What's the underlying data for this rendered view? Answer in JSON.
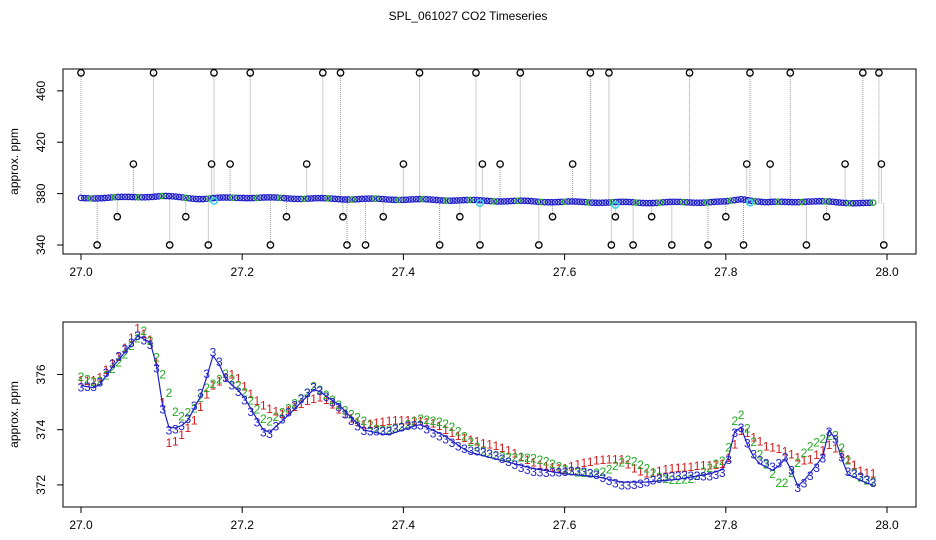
{
  "title": "SPL_061027  CO2 Timeseries",
  "colors": {
    "black": "#000000",
    "blue": "#1f1fc8",
    "cyan": "#3fd6e0",
    "green": "#22aa22",
    "red": "#d01818",
    "gray": "#9a9a9a"
  },
  "chart_data": [
    {
      "type": "scatter",
      "title": "SPL_061027  CO2 Timeseries",
      "xlabel": "",
      "ylabel": "approx. ppm",
      "xlim": [
        27.0,
        28.0
      ],
      "ylim": [
        333,
        477
      ],
      "xticks": [
        27.0,
        27.2,
        27.4,
        27.6,
        27.8,
        28.0
      ],
      "xtick_labels": [
        "27.0",
        "27.2",
        "27.4",
        "27.6",
        "27.8",
        "28.0"
      ],
      "yticks": [
        340,
        380,
        420,
        460
      ],
      "ytick_labels": [
        "340",
        "380",
        "420",
        "460"
      ],
      "baseline_series": {
        "name": "filtered",
        "x": [
          27.0,
          27.05,
          27.1,
          27.15,
          27.2,
          27.3,
          27.4,
          27.5,
          27.6,
          27.7,
          27.8,
          27.82,
          27.85,
          27.9,
          27.98
        ],
        "y": [
          376.5,
          377,
          378,
          376,
          377,
          376,
          375.5,
          374.5,
          373.5,
          373,
          373.5,
          376,
          373,
          374,
          372.5
        ]
      },
      "outliers": {
        "x": [
          27.0,
          27.02,
          27.045,
          27.065,
          27.09,
          27.11,
          27.13,
          27.158,
          27.162,
          27.165,
          27.185,
          27.21,
          27.235,
          27.255,
          27.28,
          27.3,
          27.322,
          27.325,
          27.33,
          27.353,
          27.375,
          27.4,
          27.42,
          27.445,
          27.47,
          27.49,
          27.495,
          27.498,
          27.52,
          27.545,
          27.568,
          27.585,
          27.61,
          27.632,
          27.655,
          27.658,
          27.663,
          27.685,
          27.708,
          27.733,
          27.755,
          27.778,
          27.8,
          27.822,
          27.826,
          27.83,
          27.855,
          27.88,
          27.9,
          27.925,
          27.948,
          27.97,
          27.99,
          27.993,
          27.996
        ],
        "y": [
          474,
          340,
          362,
          403,
          474,
          340,
          362,
          340,
          403,
          474,
          403,
          474,
          340,
          362,
          403,
          474,
          474,
          362,
          340,
          340,
          362,
          403,
          474,
          340,
          362,
          474,
          340,
          403,
          403,
          474,
          340,
          362,
          403,
          474,
          474,
          340,
          362,
          340,
          362,
          340,
          474,
          340,
          362,
          340,
          403,
          474,
          403,
          474,
          340,
          362,
          403,
          474,
          474,
          403,
          340
        ]
      }
    },
    {
      "type": "scatter",
      "xlabel": "",
      "ylabel": "approx. ppm",
      "xlim": [
        27.0,
        28.0
      ],
      "ylim": [
        371.2,
        377.9
      ],
      "xticks": [
        27.0,
        27.2,
        27.4,
        27.6,
        27.8,
        28.0
      ],
      "xtick_labels": [
        "27.0",
        "27.2",
        "27.4",
        "27.6",
        "27.8",
        "28.0"
      ],
      "yticks": [
        372,
        374,
        376
      ],
      "ytick_labels": [
        "372",
        "374",
        "376"
      ],
      "series": [
        {
          "name": "3",
          "label": "3",
          "color": "#1f1fc8",
          "x": [
            27.0,
            27.02,
            27.04,
            27.06,
            27.07,
            27.09,
            27.1,
            27.11,
            27.13,
            27.15,
            27.165,
            27.18,
            27.2,
            27.23,
            27.26,
            27.29,
            27.32,
            27.35,
            27.38,
            27.42,
            27.45,
            27.48,
            27.52,
            27.56,
            27.6,
            27.64,
            27.67,
            27.7,
            27.74,
            27.78,
            27.8,
            27.815,
            27.83,
            27.84,
            27.86,
            27.875,
            27.89,
            27.92,
            27.93,
            27.95,
            27.98
          ],
          "y": [
            375.6,
            375.5,
            376.3,
            377.0,
            377.4,
            377.1,
            375.0,
            374.0,
            374.2,
            375.3,
            376.8,
            375.8,
            375.3,
            373.8,
            374.6,
            375.5,
            374.9,
            374.0,
            373.8,
            374.2,
            373.8,
            373.2,
            372.9,
            372.6,
            372.4,
            372.3,
            372.1,
            372.1,
            372.2,
            372.4,
            372.6,
            374.4,
            373.2,
            372.8,
            372.5,
            373.0,
            371.9,
            373.0,
            374.2,
            372.4,
            372.0
          ]
        },
        {
          "name": "2",
          "label": "2",
          "color": "#22aa22",
          "x": [
            27.0,
            27.02,
            27.045,
            27.065,
            27.08,
            27.1,
            27.12,
            27.14,
            27.155,
            27.18,
            27.2,
            27.23,
            27.26,
            27.29,
            27.33,
            27.37,
            27.42,
            27.46,
            27.5,
            27.55,
            27.6,
            27.65,
            27.68,
            27.72,
            27.76,
            27.8,
            27.815,
            27.84,
            27.87,
            27.9,
            27.935,
            27.96,
            27.98
          ],
          "y": [
            375.8,
            375.7,
            376.5,
            377.2,
            377.6,
            376.0,
            374.3,
            374.8,
            375.6,
            376.1,
            375.4,
            374.1,
            374.9,
            375.7,
            374.5,
            374.0,
            374.4,
            374.0,
            373.3,
            372.9,
            372.6,
            372.5,
            372.8,
            372.3,
            372.3,
            372.8,
            374.7,
            373.3,
            372.0,
            373.2,
            373.8,
            372.5,
            372.2
          ]
        },
        {
          "name": "1",
          "label": "1",
          "color": "#d01818",
          "x": [
            27.0,
            27.02,
            27.05,
            27.07,
            27.09,
            27.11,
            27.14,
            27.16,
            27.19,
            27.22,
            27.25,
            27.3,
            27.35,
            27.4,
            27.44,
            27.5,
            27.55,
            27.6,
            27.63,
            27.67,
            27.7,
            27.75,
            27.8,
            27.82,
            27.85,
            27.9,
            27.93,
            27.97
          ],
          "y": [
            375.9,
            375.8,
            376.6,
            377.6,
            377.2,
            373.5,
            374.3,
            375.4,
            376.0,
            375.1,
            374.6,
            375.1,
            374.3,
            374.2,
            374.3,
            373.4,
            373.0,
            372.6,
            372.7,
            373.0,
            372.5,
            372.5,
            372.9,
            374.1,
            373.3,
            372.9,
            373.6,
            372.3
          ]
        }
      ],
      "line_color": "#1f1fc8"
    }
  ]
}
